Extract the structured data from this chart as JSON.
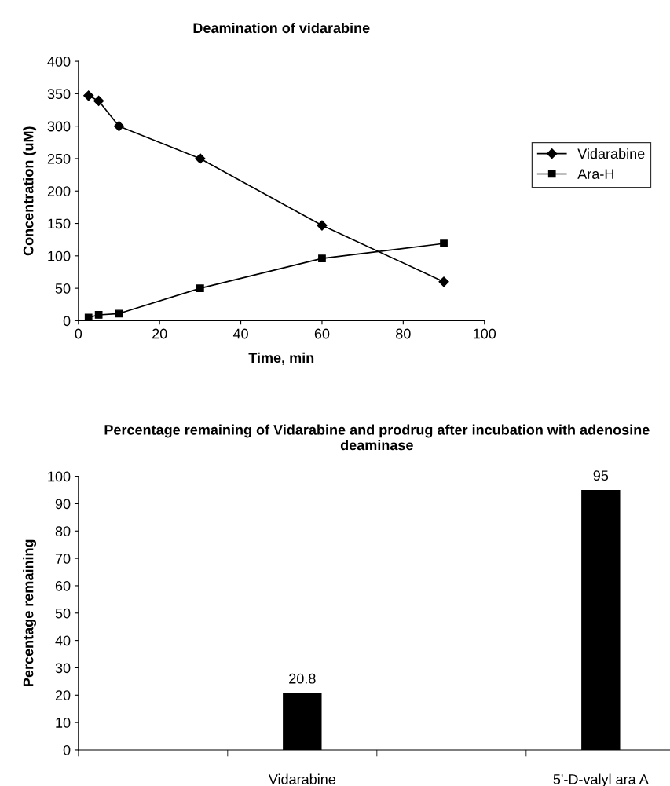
{
  "chart_data": [
    {
      "type": "line",
      "title": "Deamination of vidarabine",
      "xlabel": "Time, min",
      "ylabel": "Concentration (uM)",
      "xlim": [
        0,
        100
      ],
      "xticks": [
        0,
        20,
        40,
        60,
        80,
        100
      ],
      "ylim": [
        0,
        400
      ],
      "yticks": [
        0,
        50,
        100,
        150,
        200,
        250,
        300,
        350,
        400
      ],
      "legend": "right",
      "grid": false,
      "series": [
        {
          "name": "Vidarabine",
          "color": "#000000",
          "marker": "diamond",
          "x": [
            2.5,
            5,
            10,
            30,
            60,
            90
          ],
          "values": [
            347,
            339,
            300,
            250,
            147,
            60
          ]
        },
        {
          "name": "Ara-H",
          "color": "#000000",
          "marker": "square",
          "x": [
            2.5,
            5,
            10,
            30,
            60,
            90
          ],
          "values": [
            5,
            9,
            11,
            50,
            96,
            119
          ]
        }
      ]
    },
    {
      "type": "bar",
      "title": "Percentage remaining of Vidarabine and prodrug after incubation with adenosine deaminase",
      "ylabel": "Percentage remaining",
      "categories": [
        "Vidarabine",
        "5'-D-valyl ara A"
      ],
      "values": [
        20.8,
        95
      ],
      "color": "#000000",
      "ylim": [
        0,
        100
      ],
      "yticks": [
        0,
        10,
        20,
        30,
        40,
        50,
        60,
        70,
        80,
        90,
        100
      ],
      "data_labels": true,
      "grid": false
    }
  ]
}
